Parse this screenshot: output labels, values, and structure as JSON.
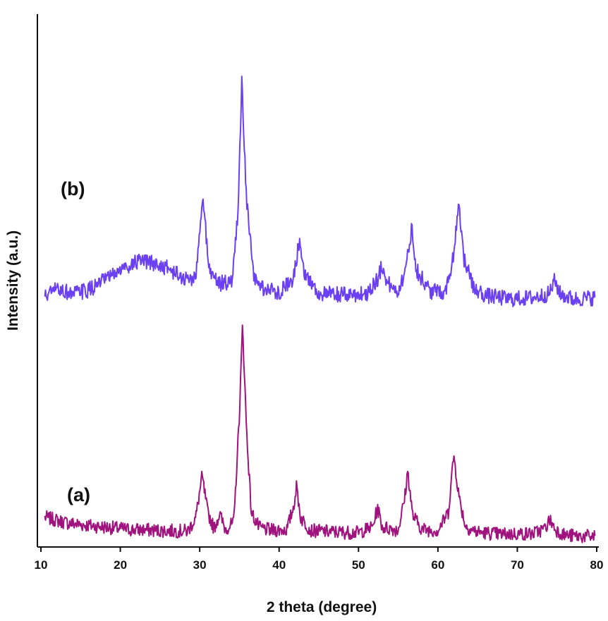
{
  "chart_data": {
    "type": "line",
    "xlabel": "2 theta (degree)",
    "ylabel": "Intensity (a.u.)",
    "xlim": [
      10,
      80
    ],
    "xticks": [
      10,
      20,
      30,
      40,
      50,
      60,
      70,
      80
    ],
    "ylim": [
      0,
      100
    ],
    "grid": false,
    "series": [
      {
        "name": "(a)",
        "color": "#a0127d",
        "baseline": 3.0,
        "noise": 1.3,
        "peaks": [
          [
            30.3,
            10.3
          ],
          [
            32.5,
            3.2
          ],
          [
            35.4,
            38.7
          ],
          [
            42.2,
            8.4
          ],
          [
            52.4,
            4.4
          ],
          [
            56.2,
            11.3
          ],
          [
            62.0,
            14.3
          ],
          [
            74.1,
            2.6
          ]
        ],
        "points": [
          [
            10.5,
            5.6
          ],
          [
            11.5,
            5.2
          ],
          [
            12.5,
            4.8
          ],
          [
            13.5,
            4.5
          ],
          [
            15,
            4.2
          ],
          [
            17,
            3.9
          ],
          [
            19,
            3.6
          ],
          [
            21,
            3.3
          ],
          [
            23,
            3.2
          ],
          [
            25,
            3.1
          ],
          [
            27,
            3.0
          ],
          [
            28.5,
            3.0
          ],
          [
            29.5,
            5.5
          ],
          [
            30.3,
            13.3
          ],
          [
            31.0,
            6.5
          ],
          [
            31.8,
            3.5
          ],
          [
            32.5,
            6.2
          ],
          [
            33.2,
            3.4
          ],
          [
            34.3,
            4.5
          ],
          [
            35.0,
            25.0
          ],
          [
            35.4,
            41.7
          ],
          [
            35.9,
            22.0
          ],
          [
            36.5,
            6.5
          ],
          [
            37.5,
            3.6
          ],
          [
            39,
            3.1
          ],
          [
            41,
            3.3
          ],
          [
            41.8,
            7.5
          ],
          [
            42.2,
            11.4
          ],
          [
            42.7,
            5.5
          ],
          [
            44,
            3.1
          ],
          [
            47,
            2.8
          ],
          [
            50,
            2.7
          ],
          [
            51.8,
            3.8
          ],
          [
            52.4,
            7.4
          ],
          [
            53.0,
            3.7
          ],
          [
            55,
            3.2
          ],
          [
            55.8,
            9.0
          ],
          [
            56.2,
            14.3
          ],
          [
            56.8,
            6.0
          ],
          [
            58,
            3.3
          ],
          [
            60,
            3.1
          ],
          [
            61.3,
            6.5
          ],
          [
            62.0,
            17.3
          ],
          [
            62.7,
            9.0
          ],
          [
            63.5,
            3.8
          ],
          [
            65,
            2.8
          ],
          [
            68,
            2.4
          ],
          [
            70,
            2.5
          ],
          [
            72,
            2.5
          ],
          [
            73.5,
            3.5
          ],
          [
            74.1,
            5.1
          ],
          [
            74.8,
            3.3
          ],
          [
            76,
            2.2
          ],
          [
            78,
            2.0
          ],
          [
            79.8,
            2.0
          ]
        ]
      },
      {
        "name": "(b)",
        "color": "#6b3ff2",
        "baseline": 47.0,
        "noise": 1.5,
        "peaks": [
          [
            30.4,
            16.0
          ],
          [
            35.3,
            40.0
          ],
          [
            42.6,
            9.5
          ],
          [
            53.0,
            5.0
          ],
          [
            56.7,
            11.5
          ],
          [
            62.6,
            17.0
          ],
          [
            74.7,
            2.5
          ]
        ],
        "points": [
          [
            10.5,
            47.0
          ],
          [
            12,
            48.5
          ],
          [
            14,
            47.5
          ],
          [
            16,
            48.2
          ],
          [
            18,
            50.0
          ],
          [
            20,
            52.0
          ],
          [
            22,
            53.5
          ],
          [
            24,
            53.3
          ],
          [
            26,
            52.3
          ],
          [
            28,
            50.3
          ],
          [
            29.5,
            50.5
          ],
          [
            30.4,
            65.5
          ],
          [
            31.2,
            52.0
          ],
          [
            32.5,
            49.5
          ],
          [
            34.0,
            49.5
          ],
          [
            34.8,
            62.0
          ],
          [
            35.3,
            87.5
          ],
          [
            35.9,
            65.0
          ],
          [
            36.8,
            50.5
          ],
          [
            38,
            48.5
          ],
          [
            40,
            47.8
          ],
          [
            41.8,
            50.5
          ],
          [
            42.6,
            58.0
          ],
          [
            43.2,
            51.5
          ],
          [
            45,
            47.5
          ],
          [
            48,
            47.3
          ],
          [
            51,
            47.5
          ],
          [
            52.5,
            50.5
          ],
          [
            53.0,
            53.0
          ],
          [
            53.6,
            49.5
          ],
          [
            55,
            48.0
          ],
          [
            56.0,
            52.5
          ],
          [
            56.7,
            60.0
          ],
          [
            57.3,
            52.0
          ],
          [
            59,
            48.0
          ],
          [
            61,
            48.0
          ],
          [
            62.0,
            55.0
          ],
          [
            62.6,
            65.0
          ],
          [
            63.3,
            54.0
          ],
          [
            64.5,
            48.5
          ],
          [
            66,
            47.2
          ],
          [
            69,
            46.5
          ],
          [
            72,
            46.8
          ],
          [
            74.0,
            47.5
          ],
          [
            74.7,
            50.0
          ],
          [
            75.4,
            47.5
          ],
          [
            77,
            46.5
          ],
          [
            79.8,
            46.8
          ]
        ]
      }
    ]
  }
}
